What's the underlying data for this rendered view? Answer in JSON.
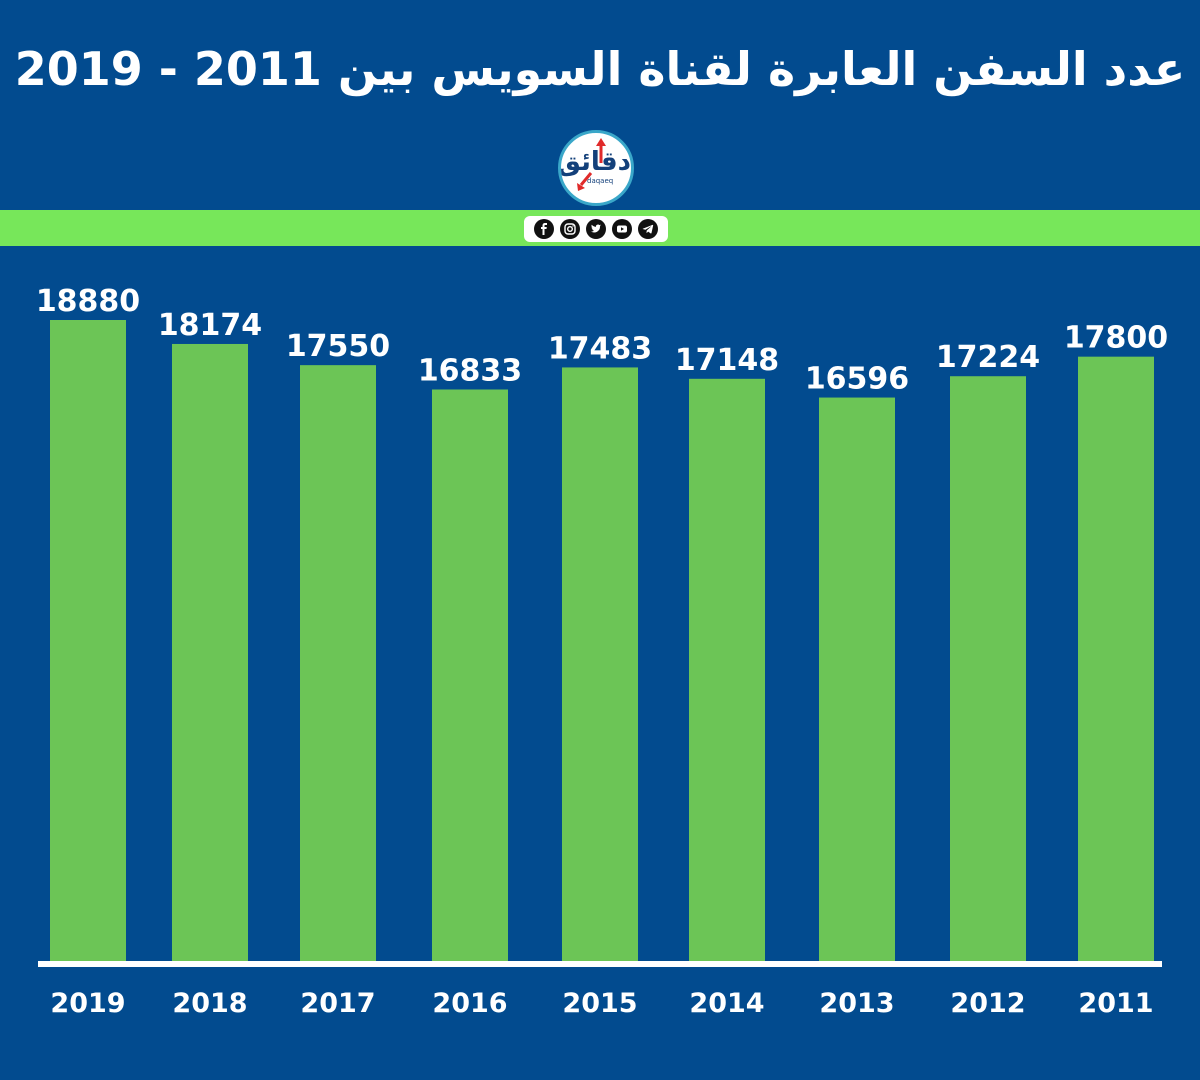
{
  "header": {
    "title": "عدد السفن العابرة لقناة السويس بين 2011 - 2019",
    "logo_text": "دقائق",
    "logo_subtext": "daqaeq"
  },
  "social": {
    "icons": [
      "facebook-icon",
      "instagram-icon",
      "twitter-icon",
      "youtube-icon",
      "telegram-icon"
    ]
  },
  "colors": {
    "background": "#024b8f",
    "bar": "#6cc556",
    "band": "#77e75a",
    "text": "#ffffff"
  },
  "chart_data": {
    "type": "bar",
    "title": "عدد السفن العابرة لقناة السويس بين 2011 - 2019",
    "categories": [
      "2019",
      "2018",
      "2017",
      "2016",
      "2015",
      "2014",
      "2013",
      "2012",
      "2011"
    ],
    "values": [
      18880,
      18174,
      17550,
      16833,
      17483,
      17148,
      16596,
      17224,
      17800
    ],
    "value_labels": [
      "18880",
      "18174",
      "17550",
      "16833",
      "17483",
      "17148",
      "16596",
      "17224",
      "17800"
    ],
    "xlabel": "",
    "ylabel": "",
    "ylim": [
      0,
      18880
    ],
    "grid": false,
    "legend": "none"
  }
}
